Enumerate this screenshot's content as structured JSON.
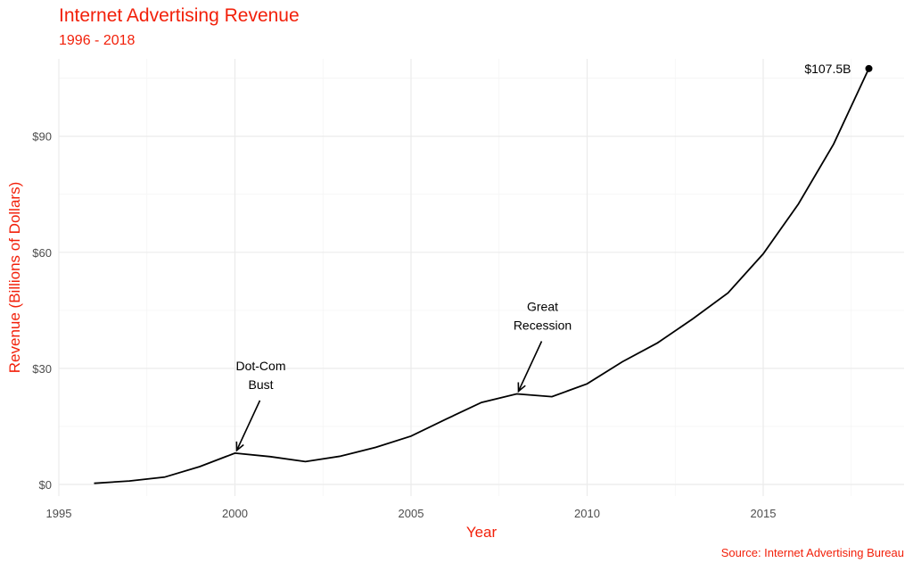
{
  "chart_data": {
    "type": "line",
    "title": "Internet Advertising Revenue",
    "subtitle": "1996 - 2018",
    "xlabel": "Year",
    "ylabel": "Revenue (Billions of Dollars)",
    "source": "Source: Internet Advertising Bureau",
    "xlim": [
      1995,
      2019
    ],
    "ylim": [
      -3,
      110
    ],
    "x_ticks": [
      1995,
      2000,
      2005,
      2010,
      2015
    ],
    "y_ticks": [
      0,
      30,
      60,
      90
    ],
    "y_tick_labels": [
      "$0",
      "$30",
      "$60",
      "$90"
    ],
    "grid": true,
    "line_color": "#000000",
    "accent_color": "#f2200a",
    "x": [
      1996,
      1997,
      1998,
      1999,
      2000,
      2001,
      2002,
      2003,
      2004,
      2005,
      2006,
      2007,
      2008,
      2009,
      2010,
      2011,
      2012,
      2013,
      2014,
      2015,
      2016,
      2017,
      2018
    ],
    "values": [
      0.3,
      0.9,
      1.9,
      4.6,
      8.1,
      7.2,
      5.9,
      7.3,
      9.6,
      12.5,
      16.9,
      21.2,
      23.4,
      22.7,
      26.0,
      31.7,
      36.6,
      42.8,
      49.5,
      59.6,
      72.5,
      88.0,
      107.5
    ],
    "end_label": "$107.5B",
    "annotations": [
      {
        "lines": [
          "Dot-Com",
          "Bust"
        ],
        "x": 2000,
        "y": 8.1
      },
      {
        "lines": [
          "Great",
          "Recession"
        ],
        "x": 2008,
        "y": 23.4
      }
    ]
  }
}
